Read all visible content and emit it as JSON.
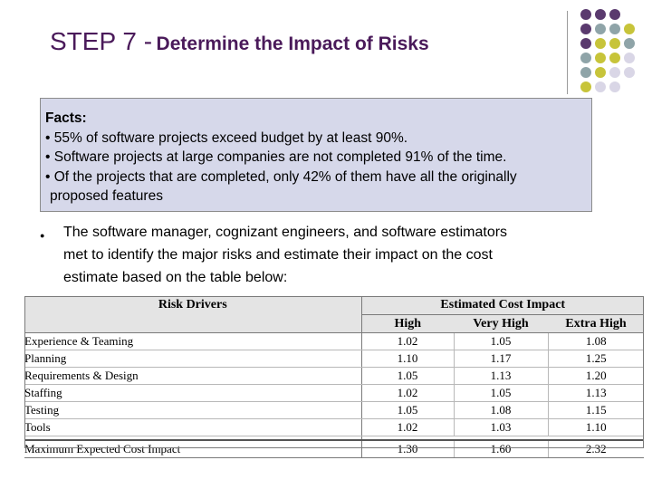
{
  "title": {
    "prefix": "STEP 7 -",
    "text": "Determine the Impact of Risks"
  },
  "facts": {
    "heading": "Facts:",
    "lines": [
      "• 55% of software projects exceed budget by at least 90%.",
      "• Software projects at large companies are not completed 91% of the time.",
      "• Of the projects that are completed, only 42% of them have all the originally",
      "proposed features"
    ]
  },
  "bullet": {
    "lines": [
      "The software manager, cognizant engineers, and software estimators",
      "met to identify the major risks and estimate their impact on the cost",
      "estimate based on the table below:"
    ]
  },
  "table": {
    "col_risk": "Risk Drivers",
    "group_header": "Estimated Cost Impact",
    "columns": [
      "High",
      "Very High",
      "Extra High"
    ],
    "rows": [
      {
        "label": "Experience & Teaming",
        "values": [
          "1.02",
          "1.05",
          "1.08"
        ]
      },
      {
        "label": "Planning",
        "values": [
          "1.10",
          "1.17",
          "1.25"
        ]
      },
      {
        "label": "Requirements & Design",
        "values": [
          "1.05",
          "1.13",
          "1.20"
        ]
      },
      {
        "label": "Staffing",
        "values": [
          "1.02",
          "1.05",
          "1.13"
        ]
      },
      {
        "label": "Testing",
        "values": [
          "1.05",
          "1.08",
          "1.15"
        ]
      },
      {
        "label": "Tools",
        "values": [
          "1.02",
          "1.03",
          "1.10"
        ]
      }
    ],
    "total": {
      "label": "Maximum Expected Cost Impact",
      "values": [
        "1.30",
        "1.60",
        "2.32"
      ]
    }
  },
  "colors": {
    "title": "#4a1a5a",
    "dot_purple": "#5a3a6e",
    "dot_teal": "#8fa4a8",
    "dot_yellow": "#c7c43a",
    "dot_lavender": "#d9d6e6",
    "facts_bg": "#d6d8ea"
  }
}
